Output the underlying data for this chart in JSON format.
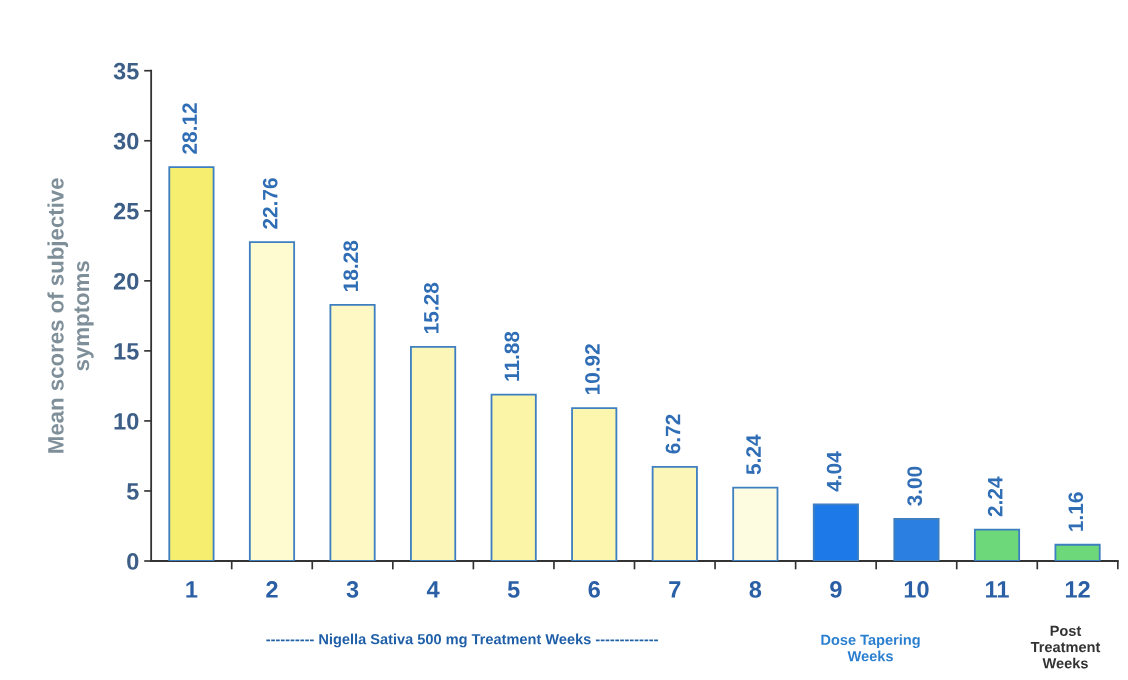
{
  "chart_data": {
    "type": "bar",
    "ylabel": "Mean scores of subjective\nsymptoms",
    "categories": [
      "1",
      "2",
      "3",
      "4",
      "5",
      "6",
      "7",
      "8",
      "9",
      "10",
      "11",
      "12"
    ],
    "values": [
      28.12,
      22.76,
      18.28,
      15.28,
      11.88,
      10.92,
      6.72,
      5.24,
      4.04,
      3.0,
      2.24,
      1.16
    ],
    "value_labels": [
      "28.12",
      "22.76",
      "18.28",
      "15.28",
      "11.88",
      "10.92",
      "6.72",
      "5.24",
      "4.04",
      "3.00",
      "2.24",
      "1.16"
    ],
    "colors": [
      "#f6ee6e",
      "#fefbd0",
      "#fdf8c4",
      "#fcf7b8",
      "#fbf5a8",
      "#fcf6ae",
      "#fcf7b8",
      "#fefce0",
      "#1d78e8",
      "#2a7fe0",
      "#6cd87a",
      "#6cd87a"
    ],
    "ylim": [
      0,
      35
    ],
    "yticks": [
      0,
      5,
      10,
      15,
      20,
      25,
      30,
      35
    ],
    "grid": false,
    "annotations": [
      "---------- Nigella Sativa 500 mg Treatment Weeks -------------",
      "Dose Tapering\nWeeks",
      "Post\nTreatment\nWeeks"
    ]
  }
}
